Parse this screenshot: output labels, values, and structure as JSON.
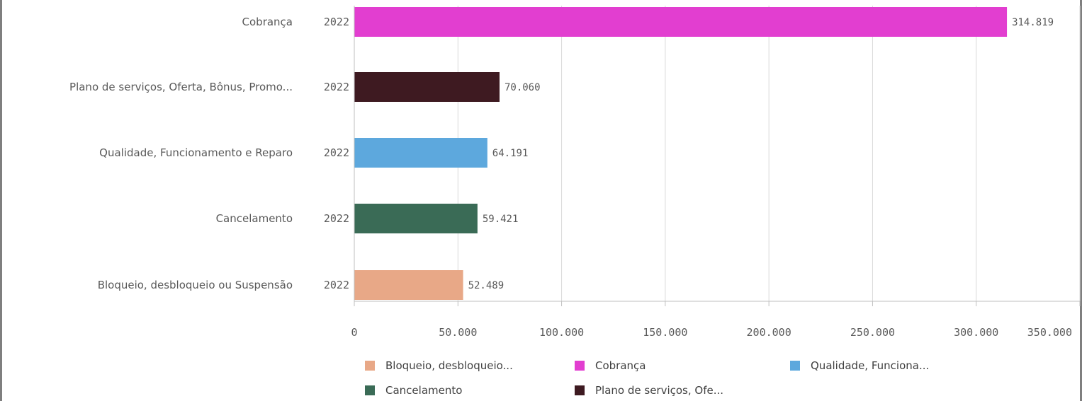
{
  "chart_data": {
    "type": "bar",
    "orientation": "horizontal",
    "year": "2022",
    "categories": [
      "Cobrança",
      "Plano de serviços, Oferta, Bônus, Promo...",
      "Qualidade, Funcionamento e Reparo",
      "Cancelamento",
      "Bloqueio, desbloqueio ou Suspensão"
    ],
    "values": [
      314819,
      70060,
      64191,
      59421,
      52489
    ],
    "value_labels": [
      "314.819",
      "70.060",
      "64.191",
      "59.421",
      "52.489"
    ],
    "colors": [
      "#e23ed0",
      "#3e1a21",
      "#5da8dd",
      "#3a6b56",
      "#e8a887"
    ],
    "xlim": [
      0,
      350000
    ],
    "x_ticks": [
      0,
      50000,
      100000,
      150000,
      200000,
      250000,
      300000,
      350000
    ],
    "x_tick_labels": [
      "0",
      "50.000",
      "100.000",
      "150.000",
      "200.000",
      "250.000",
      "300.000",
      "350.000"
    ],
    "grid": true,
    "legend": {
      "placement": "bottom",
      "items": [
        {
          "label": "Bloqueio, desbloqueio...",
          "color": "#e8a887"
        },
        {
          "label": "Cobrança",
          "color": "#e23ed0"
        },
        {
          "label": "Qualidade, Funciona...",
          "color": "#5da8dd"
        },
        {
          "label": "Cancelamento",
          "color": "#3a6b56"
        },
        {
          "label": "Plano de serviços, Ofe...",
          "color": "#3e1a21"
        }
      ]
    }
  }
}
